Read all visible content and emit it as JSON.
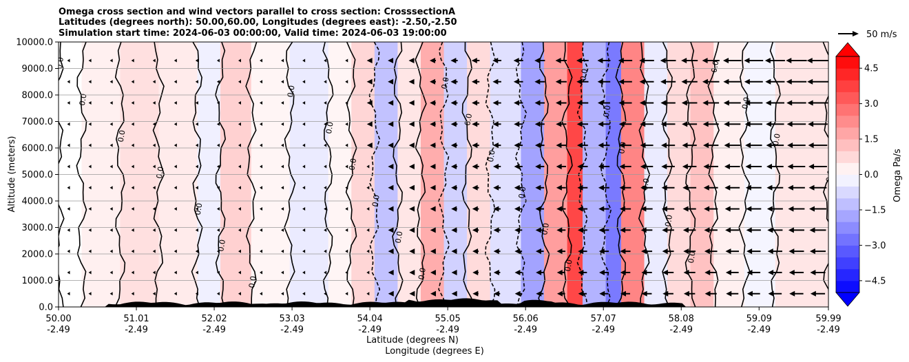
{
  "chart_data": {
    "type": "heatmap",
    "title_lines": [
      "Omega cross section and wind vectors parallel to cross section: CrosssectionA",
      "Latitudes (degrees north): 50.00,60.00, Longitudes (degrees east): -2.50,-2.50",
      "Simulation start time: 2024-06-03 00:00:00, Valid time: 2024-06-03 19:00:00"
    ],
    "ylabel": "Altitude (meters)",
    "xlabel_lines": [
      "Latitude (degrees N)",
      "Longitude (degrees E)"
    ],
    "ylim": [
      0,
      10000
    ],
    "y_ticks": [
      "0.0",
      "1000.0",
      "2000.0",
      "3000.0",
      "4000.0",
      "5000.0",
      "6000.0",
      "7000.0",
      "8000.0",
      "9000.0",
      "10000.0"
    ],
    "x_ticks": [
      {
        "lat": "50.00",
        "lon": "-2.49"
      },
      {
        "lat": "51.01",
        "lon": "-2.49"
      },
      {
        "lat": "52.02",
        "lon": "-2.49"
      },
      {
        "lat": "53.03",
        "lon": "-2.49"
      },
      {
        "lat": "54.04",
        "lon": "-2.49"
      },
      {
        "lat": "55.05",
        "lon": "-2.49"
      },
      {
        "lat": "56.06",
        "lon": "-2.49"
      },
      {
        "lat": "57.07",
        "lon": "-2.49"
      },
      {
        "lat": "58.08",
        "lon": "-2.49"
      },
      {
        "lat": "59.09",
        "lon": "-2.49"
      },
      {
        "lat": "59.99",
        "lon": "-2.49"
      }
    ],
    "colorbar": {
      "label": "Omega Pa/s",
      "range": [
        -5,
        5
      ],
      "tick_labels": [
        "4.5",
        "3.0",
        "1.5",
        "0.0",
        "−1.5",
        "−3.0",
        "−4.5"
      ],
      "tick_values": [
        4.5,
        3.0,
        1.5,
        0.0,
        -1.5,
        -3.0,
        -4.5
      ],
      "colormap": "bwr",
      "extend": "both"
    },
    "quiver_key": {
      "label": "50 m/s",
      "value": 50
    },
    "contour_label": "0.0",
    "grid": true,
    "omega_bands": [
      {
        "lat": 50.0,
        "value": 0.0
      },
      {
        "lat": 50.3,
        "value": 0.3
      },
      {
        "lat": 50.8,
        "value": 0.6
      },
      {
        "lat": 51.3,
        "value": 0.4
      },
      {
        "lat": 51.8,
        "value": -0.3
      },
      {
        "lat": 52.1,
        "value": 0.9
      },
      {
        "lat": 52.5,
        "value": 0.2
      },
      {
        "lat": 53.0,
        "value": -0.4
      },
      {
        "lat": 53.5,
        "value": 0.2
      },
      {
        "lat": 53.8,
        "value": 0.8
      },
      {
        "lat": 54.1,
        "value": -1.2
      },
      {
        "lat": 54.4,
        "value": 0.5
      },
      {
        "lat": 54.7,
        "value": 1.6
      },
      {
        "lat": 55.0,
        "value": -0.9
      },
      {
        "lat": 55.3,
        "value": 0.7
      },
      {
        "lat": 55.6,
        "value": -0.6
      },
      {
        "lat": 56.0,
        "value": -1.8
      },
      {
        "lat": 56.3,
        "value": 1.9
      },
      {
        "lat": 56.6,
        "value": 3.6
      },
      {
        "lat": 56.8,
        "value": -1.5
      },
      {
        "lat": 57.1,
        "value": -2.6
      },
      {
        "lat": 57.3,
        "value": 2.4
      },
      {
        "lat": 57.6,
        "value": -0.4
      },
      {
        "lat": 57.9,
        "value": 0.7
      },
      {
        "lat": 58.2,
        "value": 1.2
      },
      {
        "lat": 58.5,
        "value": 0.3
      },
      {
        "lat": 58.9,
        "value": -0.2
      },
      {
        "lat": 59.3,
        "value": 0.5
      },
      {
        "lat": 59.99,
        "value": 0.3
      }
    ]
  }
}
